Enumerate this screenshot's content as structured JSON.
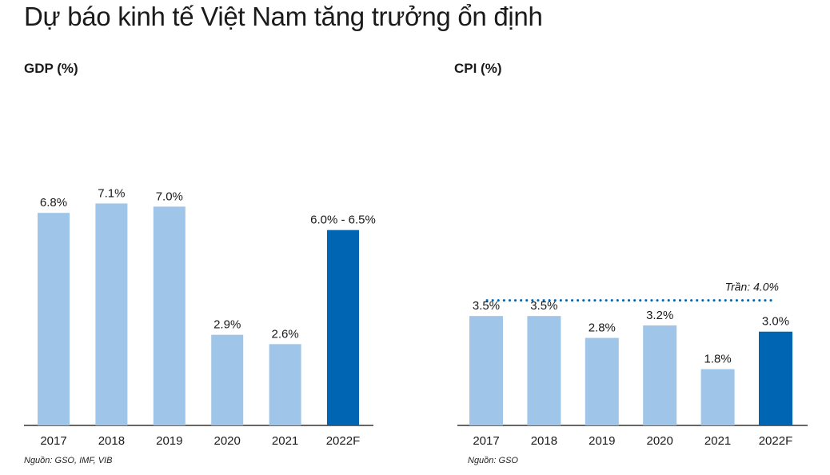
{
  "title": "Dự báo kinh tế Việt Nam tăng trưởng ổn định",
  "colors": {
    "bar": "#9fc5e8",
    "highlight": "#0066b3",
    "axis": "#333333",
    "ceiling": "#0066b3"
  },
  "chart_data": [
    {
      "type": "bar",
      "title": "GDP (%)",
      "categories": [
        "2017",
        "2018",
        "2019",
        "2020",
        "2021",
        "2022F"
      ],
      "values": [
        6.8,
        7.1,
        7.0,
        2.9,
        2.6,
        6.25
      ],
      "labels": [
        "6.8%",
        "7.1%",
        "7.0%",
        "2.9%",
        "2.6%",
        "6.0% - 6.5%"
      ],
      "highlight_index": 5,
      "ylim": [
        0,
        11
      ],
      "source": "Nguồn: GSO, IMF, VIB"
    },
    {
      "type": "bar",
      "title": "CPI (%)",
      "categories": [
        "2017",
        "2018",
        "2019",
        "2020",
        "2021",
        "2022F"
      ],
      "values": [
        3.5,
        3.5,
        2.8,
        3.2,
        1.8,
        3.0
      ],
      "labels": [
        "3.5%",
        "3.5%",
        "2.8%",
        "3.2%",
        "1.8%",
        "3.0%"
      ],
      "highlight_index": 5,
      "ylim": [
        0,
        11
      ],
      "reference_line": {
        "value": 4.0,
        "label": "Trần: 4.0%"
      },
      "source": "Nguồn: GSO"
    }
  ]
}
